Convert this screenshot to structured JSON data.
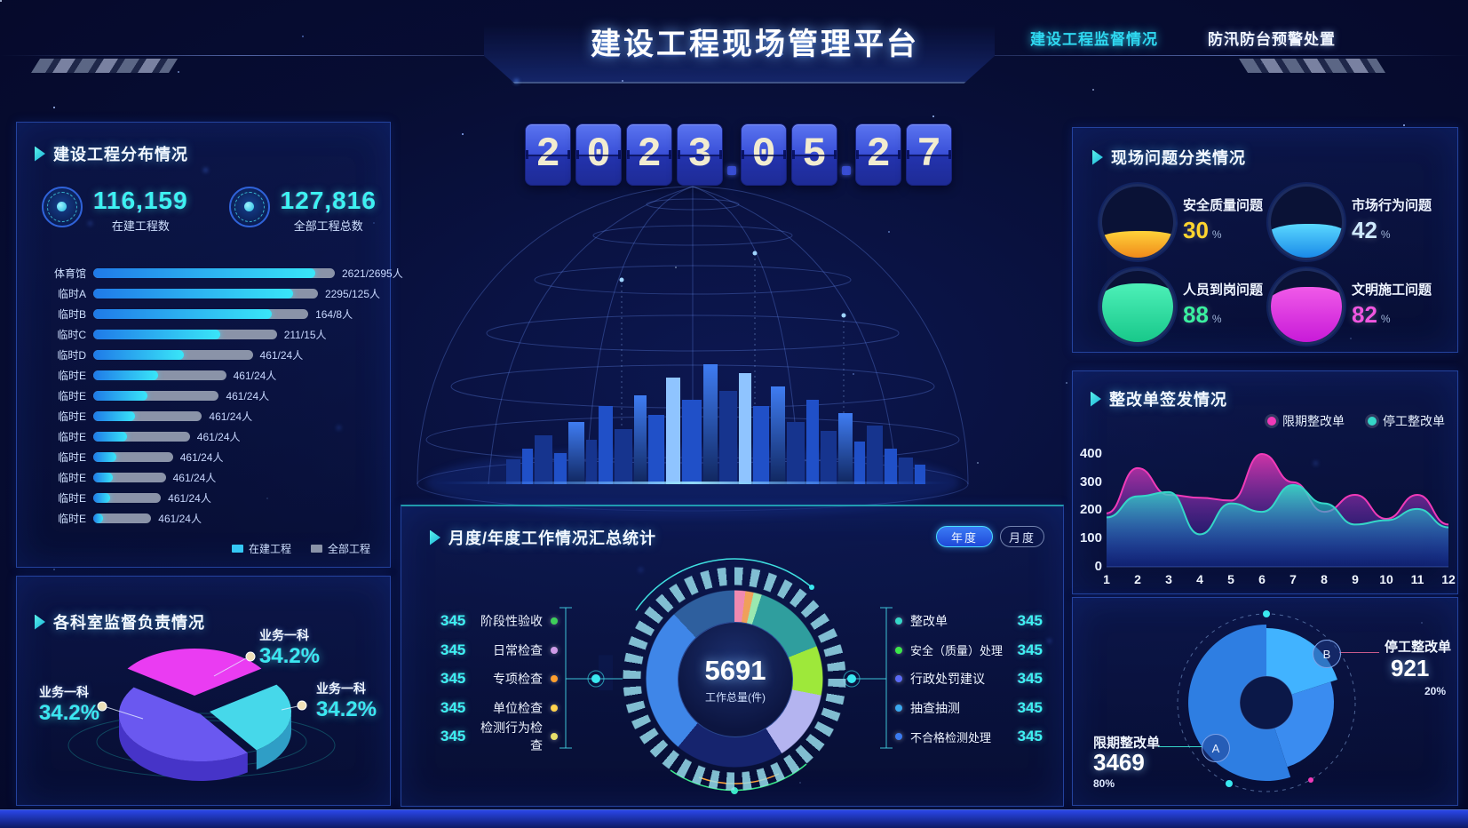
{
  "header": {
    "title": "建设工程现场管理平台",
    "nav": [
      {
        "label": "建设工程监督情况",
        "active": true
      },
      {
        "label": "防汛防台预警处置",
        "active": false
      }
    ]
  },
  "date_display": {
    "digits": [
      "2",
      "0",
      "2",
      "3",
      "0",
      "5",
      "2",
      "7"
    ]
  },
  "distribution": {
    "title": "建设工程分布情况",
    "stats": [
      {
        "value": "116,159",
        "label": "在建工程数"
      },
      {
        "value": "127,816",
        "label": "全部工程总数"
      }
    ],
    "bars": [
      {
        "label": "体育馆",
        "value": "2621/2695人",
        "fill": "92%",
        "track": "100%"
      },
      {
        "label": "临时A",
        "value": "2295/125人",
        "fill": "89%",
        "track": "93%"
      },
      {
        "label": "临时B",
        "value": "164/8人",
        "fill": "83%",
        "track": "89%"
      },
      {
        "label": "临时C",
        "value": "211/15人",
        "fill": "69%",
        "track": "76%"
      },
      {
        "label": "临时D",
        "value": "461/24人",
        "fill": "57%",
        "track": "66%"
      },
      {
        "label": "临时E",
        "value": "461/24人",
        "fill": "49%",
        "track": "55%"
      },
      {
        "label": "临时E",
        "value": "461/24人",
        "fill": "43%",
        "track": "52%"
      },
      {
        "label": "临时E",
        "value": "461/24人",
        "fill": "38%",
        "track": "45%"
      },
      {
        "label": "临时E",
        "value": "461/24人",
        "fill": "35%",
        "track": "40%"
      },
      {
        "label": "临时E",
        "value": "461/24人",
        "fill": "29%",
        "track": "33%"
      },
      {
        "label": "临时E",
        "value": "461/24人",
        "fill": "27%",
        "track": "30%"
      },
      {
        "label": "临时E",
        "value": "461/24人",
        "fill": "25%",
        "track": "28%"
      },
      {
        "label": "临时E",
        "value": "461/24人",
        "fill": "17%",
        "track": "24%"
      }
    ],
    "legend": [
      {
        "label": "在建工程",
        "color": "#35c8f5"
      },
      {
        "label": "全部工程",
        "color": "#8a93a8"
      }
    ]
  },
  "departments": {
    "title": "各科室监督负责情况",
    "slices": [
      {
        "label": "业务一科",
        "value": "34.2%",
        "color": "#ea3cf2",
        "dark": "#b01ed2"
      },
      {
        "label": "业务一科",
        "value": "34.2%",
        "color": "#46d8ea",
        "dark": "#2f9ec6"
      },
      {
        "label": "业务一科",
        "value": "34.2%",
        "color": "#6a58f0",
        "dark": "#4634c8"
      }
    ]
  },
  "monthly": {
    "title": "月度/年度工作情况汇总统计",
    "toggles": [
      {
        "label": "年度",
        "active": true
      },
      {
        "label": "月度",
        "active": false
      }
    ],
    "center": {
      "value": "5691",
      "label": "工作总量(件)"
    },
    "left_items": [
      {
        "value": "345",
        "label": "阶段性验收",
        "color": "#3ecf5a"
      },
      {
        "value": "345",
        "label": "日常检查",
        "color": "#cf9be8"
      },
      {
        "value": "345",
        "label": "专项检查",
        "color": "#ff9f2e"
      },
      {
        "value": "345",
        "label": "单位检查",
        "color": "#ffd34d"
      },
      {
        "value": "345",
        "label": "检测行为检查",
        "color": "#e8e06a"
      }
    ],
    "right_items": [
      {
        "label": "整改单",
        "value": "345",
        "color": "#35d6c8"
      },
      {
        "label": "安全（质量）处理",
        "value": "345",
        "color": "#3be84a"
      },
      {
        "label": "行政处罚建议",
        "value": "345",
        "color": "#5a6af5"
      },
      {
        "label": "抽查抽测",
        "value": "345",
        "color": "#3aa8f0"
      },
      {
        "label": "不合格检测处理",
        "value": "345",
        "color": "#3a7af0"
      }
    ],
    "donut_segments": [
      {
        "color": "#f08ab0",
        "pct": 2
      },
      {
        "color": "#f0a05a",
        "pct": 1.5
      },
      {
        "color": "#9ae8b0",
        "pct": 1.5
      },
      {
        "color": "#2f9e9e",
        "pct": 14
      },
      {
        "color": "#9ee83a",
        "pct": 9
      },
      {
        "color": "#b4b4f0",
        "pct": 13
      },
      {
        "color": "#16246e",
        "pct": 20
      },
      {
        "color": "#3f86e8",
        "pct": 27
      },
      {
        "color": "#2e5f9e",
        "pct": 12
      }
    ]
  },
  "issues": {
    "title": "现场问题分类情况",
    "items": [
      {
        "label": "安全质量问题",
        "value": "30",
        "unit": "%",
        "pct_css": "38%",
        "color": "#ffd52e",
        "liquid": "linear-gradient(180deg,#ffd23a,#f08a1a)"
      },
      {
        "label": "市场行为问题",
        "value": "42",
        "unit": "%",
        "pct_css": "48%",
        "color": "#cfeaff",
        "liquid": "linear-gradient(180deg,#5ad8ff,#1a8ae8)"
      },
      {
        "label": "人员到岗问题",
        "value": "88",
        "unit": "%",
        "pct_css": "82%",
        "color": "#3af0a0",
        "liquid": "linear-gradient(180deg,#4df0b8,#18c88a)"
      },
      {
        "label": "文明施工问题",
        "value": "82",
        "unit": "%",
        "pct_css": "78%",
        "color": "#f056e0",
        "liquid": "linear-gradient(180deg,#f05ae8,#c81ad8)"
      }
    ]
  },
  "rectification": {
    "title": "整改单签发情况",
    "legend": [
      {
        "label": "限期整改单",
        "color": "#f03ab8"
      },
      {
        "label": "停工整改单",
        "color": "#35d6c8"
      }
    ],
    "y_ticks": [
      "400",
      "300",
      "200",
      "100",
      "0"
    ],
    "x_ticks": [
      "1",
      "2",
      "3",
      "4",
      "5",
      "6",
      "7",
      "8",
      "9",
      "10",
      "11",
      "12"
    ]
  },
  "rose": {
    "items": [
      {
        "badge": "A",
        "label": "限期整改单",
        "value": "3469",
        "pct": "80%"
      },
      {
        "badge": "B",
        "label": "停工整改单",
        "value": "921",
        "pct": "20%"
      }
    ],
    "wedges": [
      {
        "a0": 0,
        "a1": 72,
        "r": 84,
        "color": "#41b3ff"
      },
      {
        "a0": 72,
        "a1": 162,
        "r": 76,
        "color": "#3a8cf0"
      },
      {
        "a0": 162,
        "a1": 360,
        "r": 88,
        "color": "#2e7ee2"
      }
    ]
  },
  "chart_data": [
    {
      "id": "distribution-bars",
      "type": "bar",
      "title": "建设工程分布情况",
      "orientation": "horizontal",
      "categories": [
        "体育馆",
        "临时A",
        "临时B",
        "临时C",
        "临时D",
        "临时E",
        "临时E",
        "临时E",
        "临时E",
        "临时E",
        "临时E",
        "临时E",
        "临时E"
      ],
      "series": [
        {
          "name": "在建工程",
          "labels": [
            "2621",
            "2295",
            "164",
            "211",
            "461",
            "461",
            "461",
            "461",
            "461",
            "461",
            "461",
            "461",
            "461"
          ]
        },
        {
          "name": "全部工程",
          "labels": [
            "2695",
            "125",
            "8",
            "15",
            "24",
            "24",
            "24",
            "24",
            "24",
            "24",
            "24",
            "24",
            "24"
          ]
        }
      ],
      "unit": "人"
    },
    {
      "id": "department-pie",
      "type": "pie",
      "title": "各科室监督负责情况",
      "labels": [
        "业务一科",
        "业务一科",
        "业务一科"
      ],
      "values": [
        34.2,
        34.2,
        34.2
      ],
      "unit": "%"
    },
    {
      "id": "work-summary",
      "type": "pie",
      "title": "月度/年度工作情况汇总统计",
      "total": 5691,
      "total_label": "工作总量(件)",
      "items": [
        {
          "label": "阶段性验收",
          "value": 345
        },
        {
          "label": "日常检查",
          "value": 345
        },
        {
          "label": "专项检查",
          "value": 345
        },
        {
          "label": "单位检查",
          "value": 345
        },
        {
          "label": "检测行为检查",
          "value": 345
        },
        {
          "label": "整改单",
          "value": 345
        },
        {
          "label": "安全（质量）处理",
          "value": 345
        },
        {
          "label": "行政处罚建议",
          "value": 345
        },
        {
          "label": "抽查抽测",
          "value": 345
        },
        {
          "label": "不合格检测处理",
          "value": 345
        }
      ]
    },
    {
      "id": "issues-gauges",
      "type": "pie",
      "title": "现场问题分类情况",
      "labels": [
        "安全质量问题",
        "市场行为问题",
        "人员到岗问题",
        "文明施工问题"
      ],
      "values": [
        30,
        42,
        88,
        82
      ],
      "unit": "%"
    },
    {
      "id": "rectification-area",
      "type": "area",
      "title": "整改单签发情况",
      "x": [
        1,
        2,
        3,
        4,
        5,
        6,
        7,
        8,
        9,
        10,
        11,
        12
      ],
      "ylim": [
        0,
        400
      ],
      "legend_position": "top-right",
      "grid": false,
      "series": [
        {
          "name": "限期整改单",
          "values": [
            190,
            350,
            255,
            245,
            235,
            400,
            300,
            195,
            255,
            170,
            255,
            150
          ]
        },
        {
          "name": "停工整改单",
          "values": [
            175,
            250,
            265,
            115,
            225,
            195,
            290,
            225,
            150,
            165,
            205,
            140
          ]
        }
      ]
    },
    {
      "id": "rectification-rose",
      "type": "pie",
      "labels": [
        "限期整改单",
        "停工整改单"
      ],
      "values": [
        3469,
        921
      ],
      "pcts": [
        80,
        20
      ]
    }
  ]
}
